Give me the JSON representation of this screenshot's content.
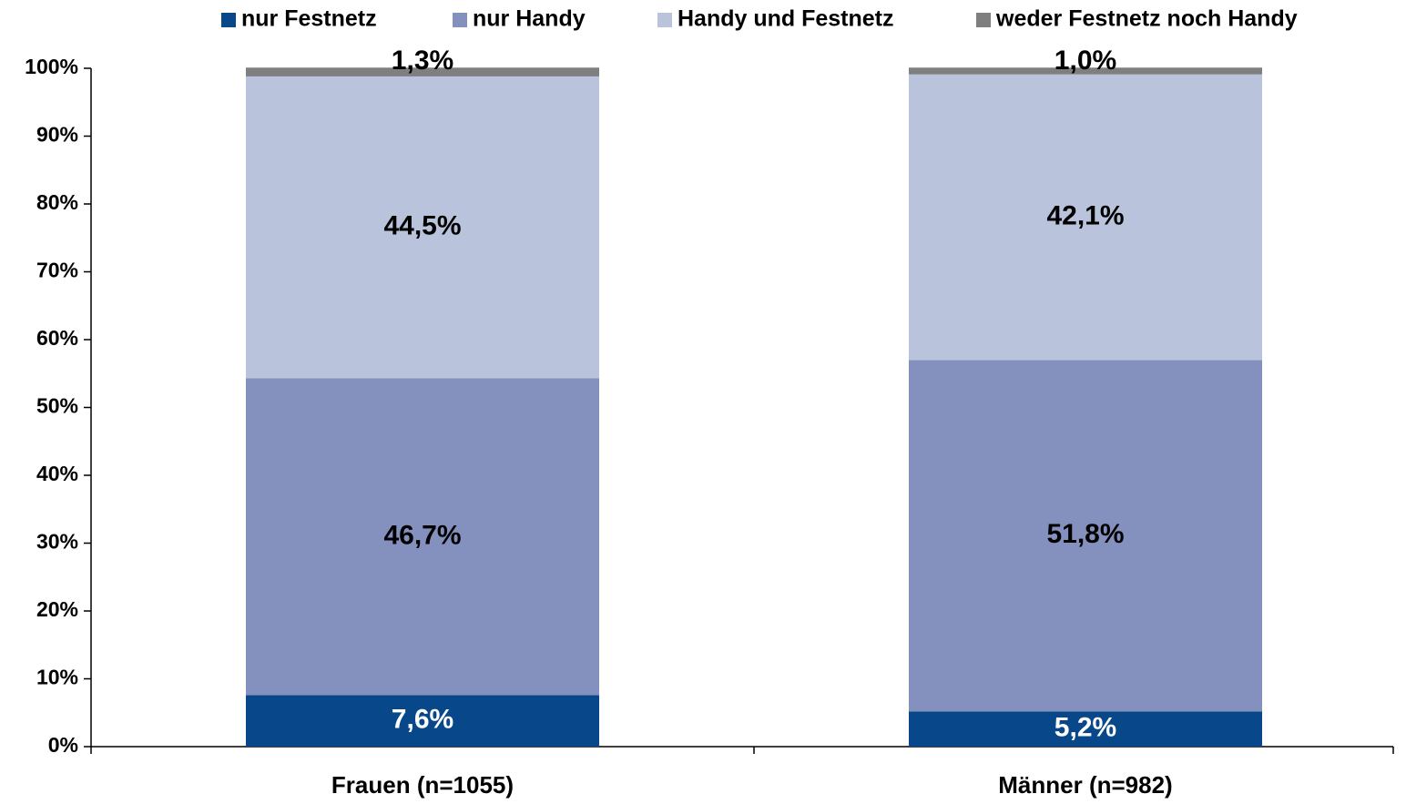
{
  "chart_data": {
    "type": "stacked_bar",
    "categories": [
      "Frauen (n=1055)",
      "Männer (n=982)"
    ],
    "series": [
      {
        "name": "nur Festnetz",
        "color": "#08488a",
        "values": [
          7.6,
          5.2
        ],
        "value_labels": [
          "7,6%",
          "5,2%"
        ]
      },
      {
        "name": "nur Handy",
        "color": "#8491be",
        "values": [
          46.7,
          51.8
        ],
        "value_labels": [
          "46,7%",
          "51,8%"
        ]
      },
      {
        "name": "Handy und Festnetz",
        "color": "#b9c3dc",
        "values": [
          44.5,
          42.1
        ],
        "value_labels": [
          "44,5%",
          "42,1%"
        ]
      },
      {
        "name": "weder Festnetz noch Handy",
        "color": "#7f7f7f",
        "values": [
          1.3,
          1.0
        ],
        "value_labels": [
          "1,3%",
          "1,0%"
        ]
      }
    ],
    "ylim": [
      0,
      100
    ],
    "yticks": [
      {
        "value": 0,
        "label": "0%"
      },
      {
        "value": 10,
        "label": "10%"
      },
      {
        "value": 20,
        "label": "20%"
      },
      {
        "value": 30,
        "label": "30%"
      },
      {
        "value": 40,
        "label": "40%"
      },
      {
        "value": 50,
        "label": "50%"
      },
      {
        "value": 60,
        "label": "60%"
      },
      {
        "value": 70,
        "label": "70%"
      },
      {
        "value": 80,
        "label": "80%"
      },
      {
        "value": 90,
        "label": "90%"
      },
      {
        "value": 100,
        "label": "100%"
      }
    ],
    "legend": "top"
  }
}
